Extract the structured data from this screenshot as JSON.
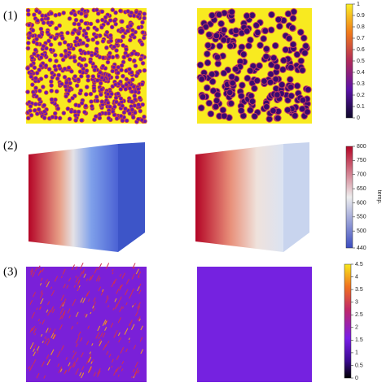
{
  "rows": [
    {
      "label": "(1)",
      "colorbar": {
        "lim": [
          0,
          1
        ],
        "ticks": [
          0,
          0.1,
          0.2,
          0.3,
          0.4,
          0.5,
          0.6,
          0.7,
          0.8,
          0.9,
          1
        ]
      }
    },
    {
      "label": "(2)",
      "colorbar": {
        "lim": [
          440,
          800
        ],
        "ticks": [
          440,
          500,
          550,
          600,
          650,
          700,
          750,
          800
        ],
        "label": "temp."
      }
    },
    {
      "label": "(3)",
      "colorbar": {
        "lim": [
          0,
          4.5
        ],
        "ticks": [
          0,
          0.5,
          1,
          1.5,
          2,
          2.5,
          3,
          3.5,
          4,
          4.5
        ]
      }
    }
  ]
}
